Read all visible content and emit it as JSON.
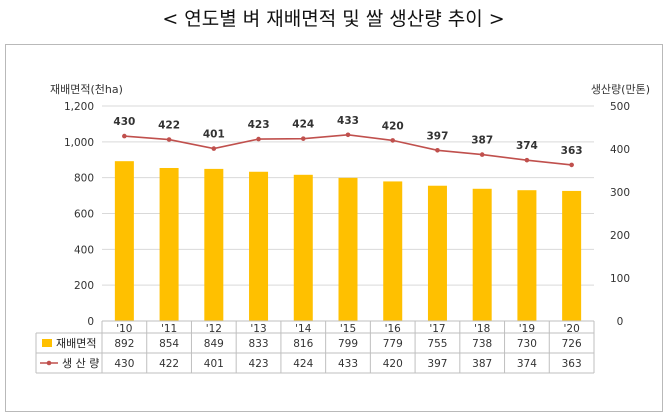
{
  "title": "< 연도별 벼 재배면적 및 쌀 생산량 추이 >",
  "chart_data": {
    "type": "bar+line",
    "categories": [
      "'10",
      "'11",
      "'12",
      "'13",
      "'14",
      "'15",
      "'16",
      "'17",
      "'18",
      "'19",
      "'20"
    ],
    "left_axis": {
      "label": "재배면적(천ha)",
      "min": 0,
      "max": 1200,
      "step": 200,
      "ticks": [
        "0",
        "200",
        "400",
        "600",
        "800",
        "1,000",
        "1,200"
      ]
    },
    "right_axis": {
      "label": "생산량(만톤)",
      "min": 0,
      "max": 500,
      "step": 100,
      "ticks": [
        "0",
        "100",
        "200",
        "300",
        "400",
        "500"
      ]
    },
    "series": [
      {
        "name": "재배면적",
        "type": "bar",
        "axis": "left",
        "color": "#FFC000",
        "values": [
          892,
          854,
          849,
          833,
          816,
          799,
          779,
          755,
          738,
          730,
          726
        ]
      },
      {
        "name": "생 산 량",
        "type": "line",
        "axis": "right",
        "color": "#C0504D",
        "values": [
          430,
          422,
          401,
          423,
          424,
          433,
          420,
          397,
          387,
          374,
          363
        ]
      }
    ],
    "grid": true,
    "legend": "data-table-bottom"
  }
}
